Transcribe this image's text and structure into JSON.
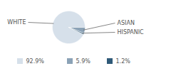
{
  "chart_data": {
    "type": "pie",
    "categories": [
      "WHITE",
      "ASIAN",
      "HISPANIC"
    ],
    "values": [
      92.9,
      5.9,
      1.2
    ],
    "value_labels": [
      "92.9%",
      "5.9%",
      "1.2%"
    ],
    "colors": [
      "#d6e0ea",
      "#8ba2b6",
      "#2f5a78"
    ],
    "legend": "bottom"
  }
}
